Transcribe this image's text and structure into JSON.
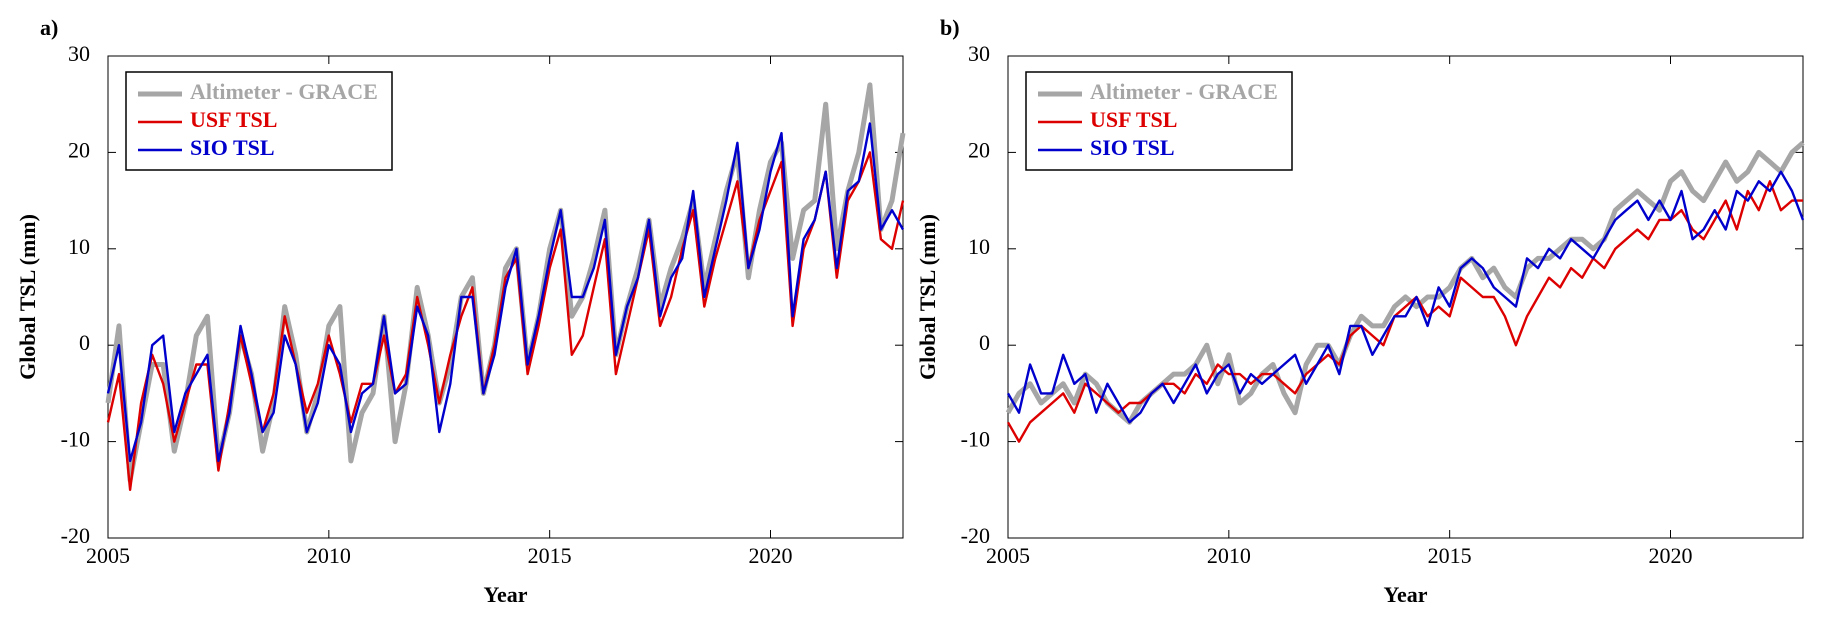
{
  "chart_data": [
    {
      "type": "line",
      "panel_label": "a)",
      "x_label": "Year",
      "y_label": "Global TSL (mm)",
      "xlim": [
        2005,
        2023
      ],
      "ylim": [
        -20,
        30
      ],
      "xticks": [
        2005,
        2010,
        2015,
        2020
      ],
      "yticks": [
        -20,
        -10,
        0,
        10,
        20,
        30
      ],
      "legend": "upper left",
      "x": [
        2005,
        2005.25,
        2005.5,
        2005.75,
        2006,
        2006.25,
        2006.5,
        2006.75,
        2007,
        2007.25,
        2007.5,
        2007.75,
        2008,
        2008.25,
        2008.5,
        2008.75,
        2009,
        2009.25,
        2009.5,
        2009.75,
        2010,
        2010.25,
        2010.5,
        2010.75,
        2011,
        2011.25,
        2011.5,
        2011.75,
        2012,
        2012.25,
        2012.5,
        2012.75,
        2013,
        2013.25,
        2013.5,
        2013.75,
        2014,
        2014.25,
        2014.5,
        2014.75,
        2015,
        2015.25,
        2015.5,
        2015.75,
        2016,
        2016.25,
        2016.5,
        2016.75,
        2017,
        2017.25,
        2017.5,
        2017.75,
        2018,
        2018.25,
        2018.5,
        2018.75,
        2019,
        2019.25,
        2019.5,
        2019.75,
        2020,
        2020.25,
        2020.5,
        2020.75,
        2021,
        2021.25,
        2021.5,
        2021.75,
        2022,
        2022.25,
        2022.5,
        2022.75,
        2023
      ],
      "series": [
        {
          "name": "Altimeter - GRACE",
          "color": "#a6a6a6",
          "values": [
            -6,
            2,
            -14,
            -8,
            -2,
            -2,
            -11,
            -6,
            1,
            3,
            -12,
            -7,
            1,
            -3,
            -11,
            -6,
            4,
            -1,
            -9,
            -5,
            2,
            4,
            -12,
            -7,
            -5,
            3,
            -10,
            -4,
            6,
            1,
            -6,
            -2,
            5,
            7,
            -5,
            0,
            8,
            10,
            -2,
            3,
            10,
            14,
            3,
            5,
            9,
            14,
            -1,
            4,
            8,
            13,
            4,
            8,
            11,
            15,
            6,
            11,
            16,
            20,
            7,
            14,
            19,
            21,
            9,
            14,
            15,
            25,
            10,
            16,
            20,
            27,
            12,
            15,
            22
          ]
        },
        {
          "name": "USF TSL",
          "color": "#dd0000",
          "values": [
            -8,
            -3,
            -15,
            -6,
            -1,
            -4,
            -10,
            -6,
            -2,
            -2,
            -13,
            -6,
            1,
            -4,
            -9,
            -5,
            3,
            -2,
            -7,
            -4,
            1,
            -3,
            -8,
            -4,
            -4,
            1,
            -5,
            -3,
            5,
            0,
            -6,
            -1,
            3,
            6,
            -5,
            0,
            7,
            9,
            -3,
            2,
            8,
            12,
            -1,
            1,
            6,
            11,
            -3,
            2,
            7,
            12,
            2,
            5,
            10,
            14,
            4,
            9,
            13,
            17,
            8,
            13,
            16,
            19,
            2,
            10,
            13,
            18,
            7,
            15,
            17,
            20,
            11,
            10,
            15
          ]
        },
        {
          "name": "SIO TSL",
          "color": "#0000cc",
          "values": [
            -5,
            0,
            -12,
            -8,
            0,
            1,
            -9,
            -5,
            -3,
            -1,
            -12,
            -7,
            2,
            -3,
            -9,
            -7,
            1,
            -2,
            -9,
            -6,
            0,
            -2,
            -9,
            -5,
            -4,
            3,
            -5,
            -4,
            4,
            1,
            -9,
            -4,
            5,
            5,
            -5,
            -1,
            6,
            10,
            -2,
            3,
            9,
            14,
            5,
            5,
            8,
            13,
            -1,
            4,
            7,
            13,
            3,
            7,
            9,
            16,
            5,
            10,
            15,
            21,
            8,
            12,
            18,
            22,
            3,
            11,
            13,
            18,
            8,
            16,
            17,
            23,
            12,
            14,
            12
          ]
        }
      ]
    },
    {
      "type": "line",
      "panel_label": "b)",
      "x_label": "Year",
      "y_label": "Global TSL (mm)",
      "xlim": [
        2005,
        2023
      ],
      "ylim": [
        -20,
        30
      ],
      "xticks": [
        2005,
        2010,
        2015,
        2020
      ],
      "yticks": [
        -20,
        -10,
        0,
        10,
        20,
        30
      ],
      "legend": "upper left",
      "x": [
        2005,
        2005.25,
        2005.5,
        2005.75,
        2006,
        2006.25,
        2006.5,
        2006.75,
        2007,
        2007.25,
        2007.5,
        2007.75,
        2008,
        2008.25,
        2008.5,
        2008.75,
        2009,
        2009.25,
        2009.5,
        2009.75,
        2010,
        2010.25,
        2010.5,
        2010.75,
        2011,
        2011.25,
        2011.5,
        2011.75,
        2012,
        2012.25,
        2012.5,
        2012.75,
        2013,
        2013.25,
        2013.5,
        2013.75,
        2014,
        2014.25,
        2014.5,
        2014.75,
        2015,
        2015.25,
        2015.5,
        2015.75,
        2016,
        2016.25,
        2016.5,
        2016.75,
        2017,
        2017.25,
        2017.5,
        2017.75,
        2018,
        2018.25,
        2018.5,
        2018.75,
        2019,
        2019.25,
        2019.5,
        2019.75,
        2020,
        2020.25,
        2020.5,
        2020.75,
        2021,
        2021.25,
        2021.5,
        2021.75,
        2022,
        2022.25,
        2022.5,
        2022.75,
        2023
      ],
      "series": [
        {
          "name": "Altimeter - GRACE",
          "color": "#a6a6a6",
          "values": [
            -7,
            -5,
            -4,
            -6,
            -5,
            -4,
            -6,
            -3,
            -4,
            -6,
            -7,
            -8,
            -6,
            -5,
            -4,
            -3,
            -3,
            -2,
            0,
            -4,
            -1,
            -6,
            -5,
            -3,
            -2,
            -5,
            -7,
            -2,
            0,
            0,
            -2,
            1,
            3,
            2,
            2,
            4,
            5,
            4,
            5,
            5,
            6,
            8,
            9,
            7,
            8,
            6,
            5,
            8,
            9,
            9,
            10,
            11,
            11,
            10,
            11,
            14,
            15,
            16,
            15,
            14,
            17,
            18,
            16,
            15,
            17,
            19,
            17,
            18,
            20,
            19,
            18,
            20,
            21
          ]
        },
        {
          "name": "USF TSL",
          "color": "#dd0000",
          "values": [
            -8,
            -10,
            -8,
            -7,
            -6,
            -5,
            -7,
            -4,
            -5,
            -6,
            -7,
            -6,
            -6,
            -5,
            -4,
            -4,
            -5,
            -3,
            -4,
            -2,
            -3,
            -3,
            -4,
            -3,
            -3,
            -4,
            -5,
            -3,
            -2,
            -1,
            -2,
            1,
            2,
            1,
            0,
            3,
            4,
            5,
            3,
            4,
            3,
            7,
            6,
            5,
            5,
            3,
            0,
            3,
            5,
            7,
            6,
            8,
            7,
            9,
            8,
            10,
            11,
            12,
            11,
            13,
            13,
            14,
            12,
            11,
            13,
            15,
            12,
            16,
            14,
            17,
            14,
            15,
            15
          ]
        },
        {
          "name": "SIO TSL",
          "color": "#0000cc",
          "values": [
            -5,
            -7,
            -2,
            -5,
            -5,
            -1,
            -4,
            -3,
            -7,
            -4,
            -6,
            -8,
            -7,
            -5,
            -4,
            -6,
            -4,
            -2,
            -5,
            -3,
            -2,
            -5,
            -3,
            -4,
            -3,
            -2,
            -1,
            -4,
            -2,
            0,
            -3,
            2,
            2,
            -1,
            1,
            3,
            3,
            5,
            2,
            6,
            4,
            8,
            9,
            8,
            6,
            5,
            4,
            9,
            8,
            10,
            9,
            11,
            10,
            9,
            11,
            13,
            14,
            15,
            13,
            15,
            13,
            16,
            11,
            12,
            14,
            12,
            16,
            15,
            17,
            16,
            18,
            16,
            13
          ]
        }
      ]
    }
  ]
}
